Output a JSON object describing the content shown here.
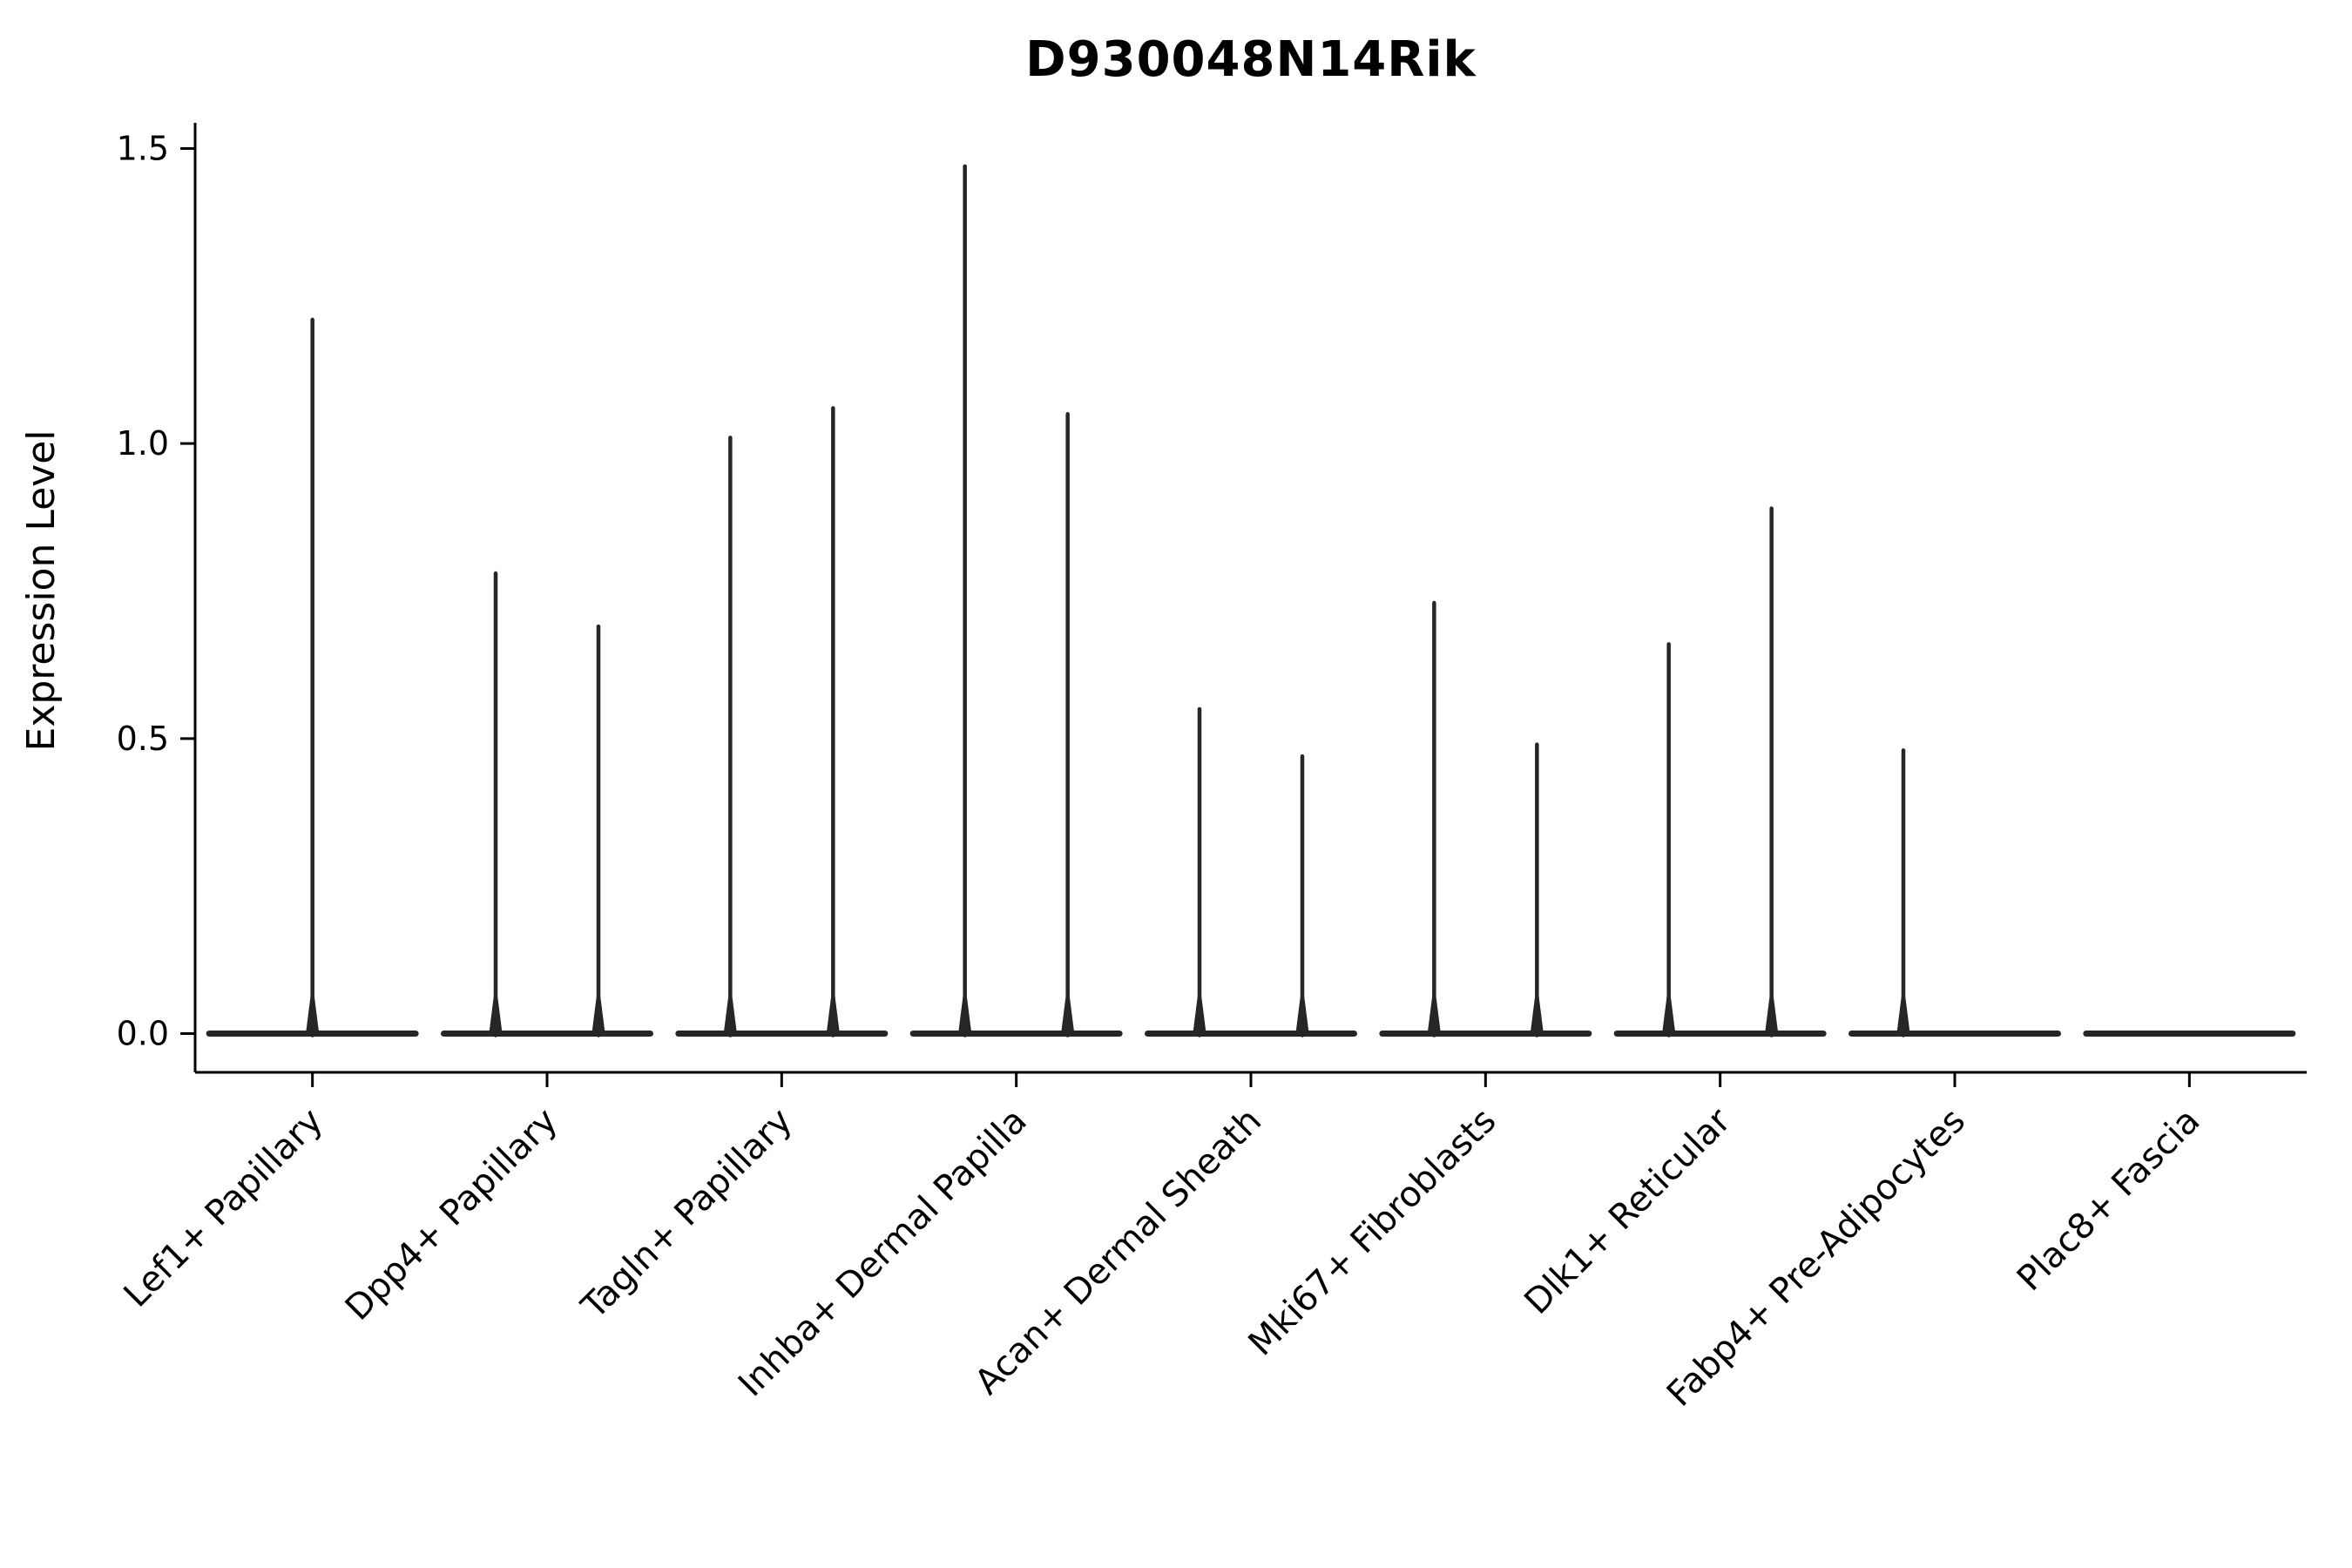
{
  "chart_data": {
    "type": "violin",
    "title": "D930048N14Rik",
    "ylabel": "Expression Level",
    "xlabel": "",
    "ylim": [
      0,
      1.5
    ],
    "yticks": [
      0.0,
      0.5,
      1.0,
      1.5
    ],
    "ytick_labels": [
      "0.0",
      "0.5",
      "1.0",
      "1.5"
    ],
    "grid": false,
    "legend": null,
    "baseline_value": 0.0,
    "categories": [
      "Lef1+ Papillary",
      "Dpp4+ Papillary",
      "Tagln+ Papillary",
      "Inhba+ Dermal Papilla",
      "Acan+ Dermal Sheath",
      "Mki67+ Fibroblasts",
      "Dlk1+ Reticular",
      "Fabp4+ Pre-Adipocytes",
      "Plac8+ Fascia"
    ],
    "groups": [
      {
        "label": "Lef1+ Papillary",
        "spikes": [
          {
            "offset": 0,
            "value": 1.21
          }
        ]
      },
      {
        "label": "Dpp4+ Papillary",
        "spikes": [
          {
            "offset": -1,
            "value": 0.78
          },
          {
            "offset": 1,
            "value": 0.69
          }
        ]
      },
      {
        "label": "Tagln+ Papillary",
        "spikes": [
          {
            "offset": -1,
            "value": 1.01
          },
          {
            "offset": 1,
            "value": 1.06
          }
        ]
      },
      {
        "label": "Inhba+ Dermal Papilla",
        "spikes": [
          {
            "offset": -1,
            "value": 1.47
          },
          {
            "offset": 1,
            "value": 1.05
          }
        ]
      },
      {
        "label": "Acan+ Dermal Sheath",
        "spikes": [
          {
            "offset": -1,
            "value": 0.55
          },
          {
            "offset": 1,
            "value": 0.47
          }
        ]
      },
      {
        "label": "Mki67+ Fibroblasts",
        "spikes": [
          {
            "offset": -1,
            "value": 0.73
          },
          {
            "offset": 1,
            "value": 0.49
          }
        ]
      },
      {
        "label": "Dlk1+ Reticular",
        "spikes": [
          {
            "offset": -1,
            "value": 0.66
          },
          {
            "offset": 1,
            "value": 0.89
          }
        ]
      },
      {
        "label": "Fabp4+ Pre-Adipocytes",
        "spikes": [
          {
            "offset": -1,
            "value": 0.48
          }
        ]
      },
      {
        "label": "Plac8+ Fascia",
        "spikes": []
      }
    ],
    "colors": {
      "violin": "#262626",
      "axis": "#000000",
      "text": "#000000"
    }
  }
}
